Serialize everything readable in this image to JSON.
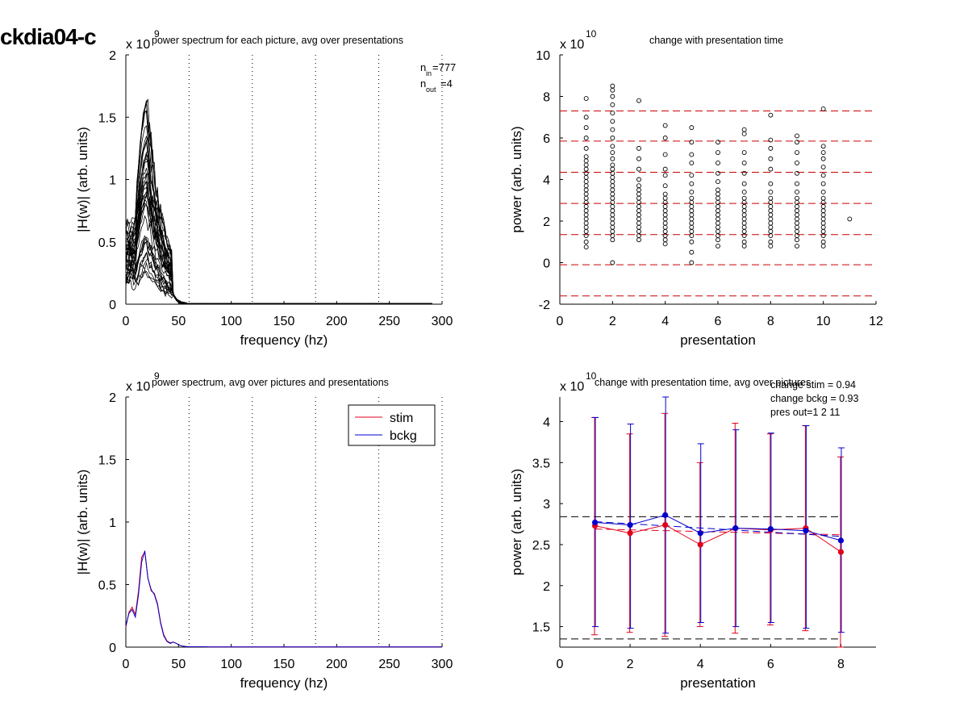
{
  "page_title": "ckdia04-c",
  "colors": {
    "stim": "#e0001b",
    "bckg": "#0000cc",
    "ref_line": "#cc0000",
    "axis": "#000000"
  },
  "chart_data": [
    {
      "id": "p1",
      "type": "line",
      "title": "power spectrum for each picture, avg over presentations",
      "xlabel": "frequency (hz)",
      "ylabel": "|H(w)| (arb. units)",
      "y_exponent": "x 10",
      "y_exponent_power": "9",
      "xlim": [
        0,
        300
      ],
      "ylim": [
        0,
        2
      ],
      "xticks": [
        0,
        50,
        100,
        150,
        200,
        250,
        300
      ],
      "yticks": [
        0,
        0.5,
        1,
        1.5,
        2
      ],
      "ytick_labels": [
        "0",
        "0.5",
        "1",
        "1.5",
        "2"
      ],
      "vlines_x": [
        60,
        120,
        180,
        240,
        300
      ],
      "annotation": {
        "n_in_label": "n",
        "n_in_sub": "in",
        "n_in_val": "=777",
        "n_out_label": "n",
        "n_out_sub": "out",
        "n_out_val": "=4"
      },
      "series_count": 40,
      "peak_range": [
        0.25,
        1.84
      ]
    },
    {
      "id": "p2",
      "type": "scatter",
      "title": "change with presentation time",
      "xlabel": "presentation",
      "ylabel": "power (arb. units)",
      "y_exponent": "x 10",
      "y_exponent_power": "10",
      "xlim": [
        0,
        12
      ],
      "ylim": [
        -2,
        10
      ],
      "xticks": [
        0,
        2,
        4,
        6,
        8,
        10,
        12
      ],
      "yticks": [
        -2,
        0,
        2,
        4,
        6,
        8,
        10
      ],
      "hlines_y": [
        7.3,
        5.85,
        4.35,
        2.85,
        1.35,
        -0.1,
        -1.6
      ],
      "points": [
        {
          "x": 1,
          "y": [
            0.75,
            1.0,
            1.3,
            1.5,
            1.7,
            1.9,
            2.1,
            2.3,
            2.5,
            2.7,
            2.9,
            3.1,
            3.3,
            3.5,
            3.7,
            3.9,
            4.1,
            4.3,
            4.5,
            4.7,
            4.9,
            5.1,
            5.5,
            6.0,
            6.5,
            7.0,
            7.9
          ]
        },
        {
          "x": 2,
          "y": [
            0.0,
            1.1,
            1.3,
            1.5,
            1.7,
            1.9,
            2.1,
            2.3,
            2.5,
            2.7,
            2.9,
            3.1,
            3.3,
            3.5,
            3.7,
            3.9,
            4.1,
            4.3,
            4.5,
            4.7,
            5.0,
            5.3,
            5.6,
            6.0,
            6.4,
            6.8,
            7.2,
            7.6,
            8.0,
            8.3,
            8.5
          ]
        },
        {
          "x": 3,
          "y": [
            1.1,
            1.3,
            1.5,
            1.7,
            1.9,
            2.1,
            2.3,
            2.5,
            2.7,
            2.9,
            3.1,
            3.3,
            3.5,
            3.7,
            4.0,
            4.5,
            5.0,
            5.5,
            7.8
          ]
        },
        {
          "x": 4,
          "y": [
            0.9,
            1.1,
            1.3,
            1.5,
            1.7,
            1.9,
            2.1,
            2.3,
            2.5,
            2.7,
            2.9,
            3.1,
            3.3,
            3.7,
            4.2,
            4.5,
            5.2,
            6.0,
            6.6
          ]
        },
        {
          "x": 5,
          "y": [
            0.0,
            0.5,
            1.0,
            1.3,
            1.5,
            1.7,
            1.9,
            2.1,
            2.3,
            2.5,
            2.7,
            2.9,
            3.1,
            3.4,
            3.8,
            4.2,
            4.8,
            5.2,
            5.8,
            6.5
          ]
        },
        {
          "x": 6,
          "y": [
            0.8,
            1.1,
            1.3,
            1.5,
            1.7,
            1.9,
            2.1,
            2.3,
            2.5,
            2.7,
            2.9,
            3.1,
            3.3,
            3.5,
            3.9,
            4.3,
            4.8,
            5.3,
            5.8
          ]
        },
        {
          "x": 7,
          "y": [
            0.8,
            1.0,
            1.3,
            1.5,
            1.7,
            1.9,
            2.1,
            2.3,
            2.5,
            2.7,
            2.9,
            3.1,
            3.4,
            3.8,
            4.3,
            4.8,
            5.3,
            6.2,
            6.4
          ]
        },
        {
          "x": 8,
          "y": [
            0.8,
            1.0,
            1.3,
            1.5,
            1.7,
            1.9,
            2.1,
            2.3,
            2.5,
            2.7,
            2.9,
            3.1,
            3.4,
            3.8,
            4.5,
            5.0,
            5.5,
            5.9,
            7.1
          ]
        },
        {
          "x": 9,
          "y": [
            0.8,
            1.1,
            1.3,
            1.5,
            1.7,
            1.9,
            2.1,
            2.3,
            2.5,
            2.7,
            2.9,
            3.1,
            3.4,
            3.8,
            4.3,
            4.8,
            5.3,
            5.8,
            6.1
          ]
        },
        {
          "x": 10,
          "y": [
            0.8,
            1.0,
            1.3,
            1.5,
            1.7,
            1.9,
            2.1,
            2.3,
            2.5,
            2.7,
            2.9,
            3.1,
            3.4,
            3.8,
            4.2,
            4.6,
            5.0,
            5.3,
            5.6,
            7.4
          ]
        },
        {
          "x": 11,
          "y": [
            2.1
          ]
        }
      ]
    },
    {
      "id": "p3",
      "type": "line",
      "title": "power spectrum, avg over pictures and presentations",
      "xlabel": "frequency (hz)",
      "ylabel": "|H(w)| (arb. units)",
      "y_exponent": "x 10",
      "y_exponent_power": "9",
      "xlim": [
        0,
        300
      ],
      "ylim": [
        0,
        2
      ],
      "xticks": [
        0,
        50,
        100,
        150,
        200,
        250,
        300
      ],
      "yticks": [
        0,
        0.5,
        1,
        1.5,
        2
      ],
      "ytick_labels": [
        "0",
        "0.5",
        "1",
        "1.5",
        "2"
      ],
      "vlines_x": [
        60,
        120,
        180,
        240,
        300
      ],
      "legend": {
        "position": "top-right",
        "entries": [
          "stim",
          "bckg"
        ]
      },
      "series": [
        {
          "name": "stim",
          "x": [
            0,
            3,
            6,
            9,
            12,
            15,
            18,
            21,
            24,
            27,
            30,
            33,
            36,
            39,
            42,
            45,
            48,
            51,
            54,
            57,
            60,
            80,
            120,
            200,
            300
          ],
          "y": [
            0.16,
            0.28,
            0.32,
            0.26,
            0.45,
            0.72,
            0.76,
            0.55,
            0.45,
            0.43,
            0.35,
            0.2,
            0.1,
            0.05,
            0.035,
            0.04,
            0.03,
            0.015,
            0.008,
            0.005,
            0.003,
            0.002,
            0.001,
            0.001,
            0.001
          ]
        },
        {
          "name": "bckg",
          "x": [
            0,
            3,
            6,
            9,
            12,
            15,
            18,
            21,
            24,
            27,
            30,
            33,
            36,
            39,
            42,
            45,
            48,
            51,
            54,
            57,
            60,
            80,
            120,
            200,
            300
          ],
          "y": [
            0.17,
            0.27,
            0.3,
            0.24,
            0.42,
            0.68,
            0.77,
            0.55,
            0.46,
            0.42,
            0.34,
            0.19,
            0.09,
            0.045,
            0.03,
            0.04,
            0.03,
            0.015,
            0.008,
            0.005,
            0.003,
            0.002,
            0.001,
            0.001,
            0.001
          ]
        }
      ]
    },
    {
      "id": "p4",
      "type": "line",
      "title": "change with presentation time, avg over pictures",
      "xlabel": "presentation",
      "ylabel": "power (arb. units)",
      "y_exponent": "x 10",
      "y_exponent_power": "10",
      "xlim": [
        0,
        9
      ],
      "ylim": [
        1.25,
        4.3
      ],
      "xticks": [
        0,
        2,
        4,
        6,
        8
      ],
      "yticks": [
        1.5,
        2,
        2.5,
        3,
        3.5,
        4
      ],
      "ytick_labels": [
        "1.5",
        "2",
        "2.5",
        "3",
        "3.5",
        "4"
      ],
      "hlines_y": [
        2.84,
        1.35
      ],
      "annotation": [
        "change stim = 0.94",
        "change bckg = 0.93",
        "pres out=1 2 11"
      ],
      "x": [
        1,
        2,
        3,
        4,
        5,
        6,
        7,
        8
      ],
      "series": [
        {
          "name": "stim",
          "values": [
            2.73,
            2.64,
            2.74,
            2.5,
            2.7,
            2.68,
            2.7,
            2.41
          ],
          "err_low": [
            1.4,
            1.43,
            1.38,
            1.5,
            1.42,
            1.52,
            1.45,
            1.25
          ],
          "err_high": [
            4.05,
            3.85,
            4.1,
            3.5,
            3.98,
            3.85,
            3.95,
            3.57
          ],
          "trend": [
            2.69,
            2.62
          ]
        },
        {
          "name": "bckg",
          "values": [
            2.77,
            2.74,
            2.86,
            2.64,
            2.7,
            2.69,
            2.67,
            2.55
          ],
          "err_low": [
            1.5,
            1.48,
            1.42,
            1.55,
            1.5,
            1.55,
            1.48,
            1.43
          ],
          "err_high": [
            4.05,
            3.97,
            4.3,
            3.73,
            3.9,
            3.86,
            3.95,
            3.68
          ],
          "trend": [
            2.78,
            2.6
          ]
        }
      ]
    }
  ]
}
